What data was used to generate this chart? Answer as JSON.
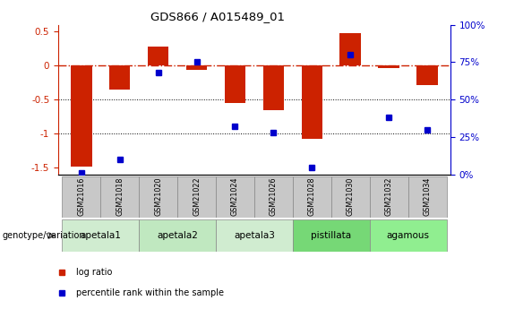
{
  "title": "GDS866 / A015489_01",
  "samples": [
    "GSM21016",
    "GSM21018",
    "GSM21020",
    "GSM21022",
    "GSM21024",
    "GSM21026",
    "GSM21028",
    "GSM21030",
    "GSM21032",
    "GSM21034"
  ],
  "log_ratio": [
    -1.48,
    -0.35,
    0.28,
    -0.06,
    -0.55,
    -0.65,
    -1.08,
    0.48,
    -0.04,
    -0.28
  ],
  "percentile_rank": [
    1,
    10,
    68,
    75,
    32,
    28,
    5,
    80,
    38,
    30
  ],
  "genotype_groups": [
    {
      "label": "apetala1",
      "indices": [
        0,
        1
      ],
      "color": "#d0ecd0"
    },
    {
      "label": "apetala2",
      "indices": [
        2,
        3
      ],
      "color": "#c0e8c0"
    },
    {
      "label": "apetala3",
      "indices": [
        4,
        5
      ],
      "color": "#d0ecd0"
    },
    {
      "label": "pistillata",
      "indices": [
        6,
        7
      ],
      "color": "#76d876"
    },
    {
      "label": "agamous",
      "indices": [
        8,
        9
      ],
      "color": "#90ee90"
    }
  ],
  "bar_color": "#cc2200",
  "dot_color": "#0000cc",
  "ylim_left": [
    -1.6,
    0.6
  ],
  "ylim_right": [
    0,
    100
  ],
  "yticks_left": [
    -1.5,
    -1.0,
    -0.5,
    0.0,
    0.5
  ],
  "ytick_labels_left": [
    "-1.5",
    "-1",
    "-0.5",
    "0",
    "0.5"
  ],
  "yticks_right": [
    0,
    25,
    50,
    75,
    100
  ],
  "ytick_labels_right": [
    "0%",
    "25%",
    "50%",
    "75%",
    "100%"
  ],
  "hline_dotted_vals": [
    -0.5,
    -1.0
  ],
  "genotype_label": "genotype/variation",
  "legend_entries": [
    {
      "label": "log ratio",
      "color": "#cc2200"
    },
    {
      "label": "percentile rank within the sample",
      "color": "#0000cc"
    }
  ],
  "sample_box_color": "#c8c8c8",
  "sample_box_edge": "#888888",
  "group_box_edge": "#888888"
}
